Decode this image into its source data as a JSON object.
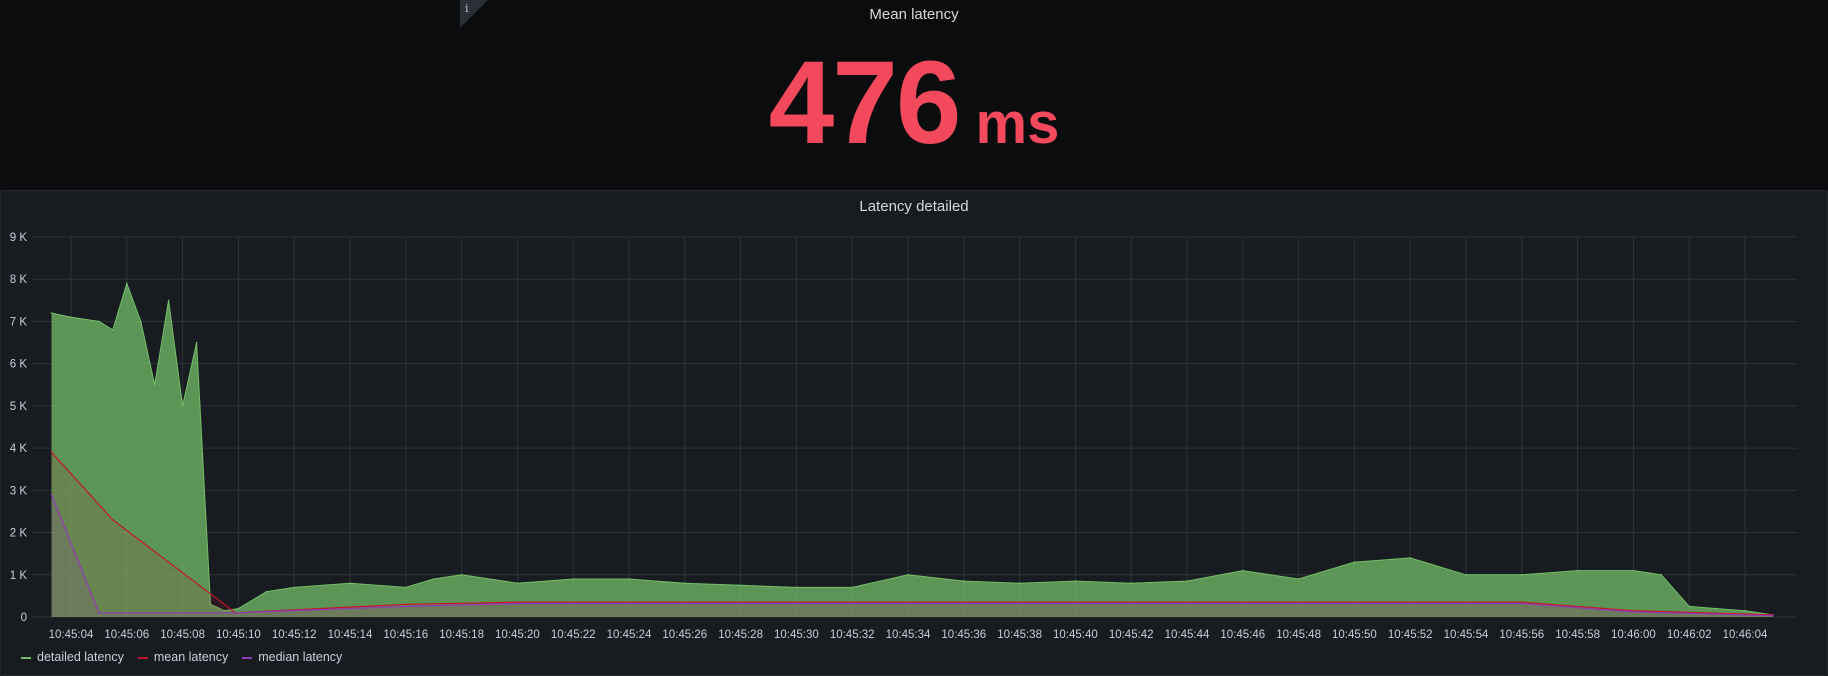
{
  "stat": {
    "title": "Mean latency",
    "value": "476",
    "unit": "ms",
    "color": "#f2495c",
    "info_icon": "i"
  },
  "graph": {
    "title": "Latency detailed"
  },
  "legend": [
    {
      "label": "detailed latency",
      "color": "#73bf69"
    },
    {
      "label": "mean latency",
      "color": "#c4162a"
    },
    {
      "label": "median latency",
      "color": "#8f3bb8"
    }
  ],
  "chart_data": {
    "type": "area",
    "title": "Latency detailed",
    "xlabel": "",
    "ylabel": "",
    "ylim": [
      0,
      9000
    ],
    "y_ticks": [
      "0",
      "1 K",
      "2 K",
      "3 K",
      "4 K",
      "5 K",
      "6 K",
      "7 K",
      "8 K",
      "9 K"
    ],
    "x_ticks": [
      "10:45:04",
      "10:45:06",
      "10:45:08",
      "10:45:10",
      "10:45:12",
      "10:45:14",
      "10:45:16",
      "10:45:18",
      "10:45:20",
      "10:45:22",
      "10:45:24",
      "10:45:26",
      "10:45:28",
      "10:45:30",
      "10:45:32",
      "10:45:34",
      "10:45:36",
      "10:45:38",
      "10:45:40",
      "10:45:42",
      "10:45:44",
      "10:45:46",
      "10:45:48",
      "10:45:50",
      "10:45:52",
      "10:45:54",
      "10:45:56",
      "10:45:58",
      "10:46:00",
      "10:46:02",
      "10:46:04"
    ],
    "grid": true,
    "legend_position": "bottom-left",
    "series": [
      {
        "name": "detailed latency",
        "color": "#73bf69",
        "x": [
          "10:45:03.3",
          "10:45:04",
          "10:45:05",
          "10:45:05.5",
          "10:45:06",
          "10:45:06.5",
          "10:45:07",
          "10:45:07.5",
          "10:45:08",
          "10:45:08.5",
          "10:45:09",
          "10:45:09.5",
          "10:45:10",
          "10:45:11",
          "10:45:12",
          "10:45:14",
          "10:45:16",
          "10:45:17",
          "10:45:18",
          "10:45:20",
          "10:45:22",
          "10:45:24",
          "10:45:26",
          "10:45:28",
          "10:45:30",
          "10:45:32",
          "10:45:34",
          "10:45:36",
          "10:45:38",
          "10:45:40",
          "10:45:42",
          "10:45:44",
          "10:45:46",
          "10:45:48",
          "10:45:50",
          "10:45:52",
          "10:45:54",
          "10:45:56",
          "10:45:58",
          "10:46:00",
          "10:46:01",
          "10:46:02",
          "10:46:03",
          "10:46:04",
          "10:46:05"
        ],
        "values": [
          7200,
          7100,
          7000,
          6800,
          7900,
          7000,
          5500,
          7500,
          5000,
          6500,
          300,
          150,
          200,
          600,
          700,
          800,
          700,
          900,
          1000,
          800,
          900,
          900,
          800,
          750,
          700,
          700,
          1000,
          850,
          800,
          850,
          800,
          850,
          1100,
          900,
          1300,
          1400,
          1000,
          1000,
          1100,
          1100,
          1000,
          250,
          200,
          150,
          50
        ]
      },
      {
        "name": "mean latency",
        "color": "#c4162a",
        "x": [
          "10:45:03.3",
          "10:45:05.5",
          "10:45:09.9",
          "10:45:16",
          "10:45:20",
          "10:45:56",
          "10:46:00",
          "10:46:05"
        ],
        "values": [
          3900,
          2300,
          100,
          300,
          350,
          350,
          150,
          50
        ]
      },
      {
        "name": "median latency",
        "color": "#8f3bb8",
        "x": [
          "10:45:03.3",
          "10:45:05",
          "10:45:09.9",
          "10:45:16",
          "10:45:20",
          "10:45:56",
          "10:46:00",
          "10:46:05"
        ],
        "values": [
          2900,
          100,
          100,
          250,
          320,
          320,
          120,
          30
        ]
      }
    ]
  }
}
